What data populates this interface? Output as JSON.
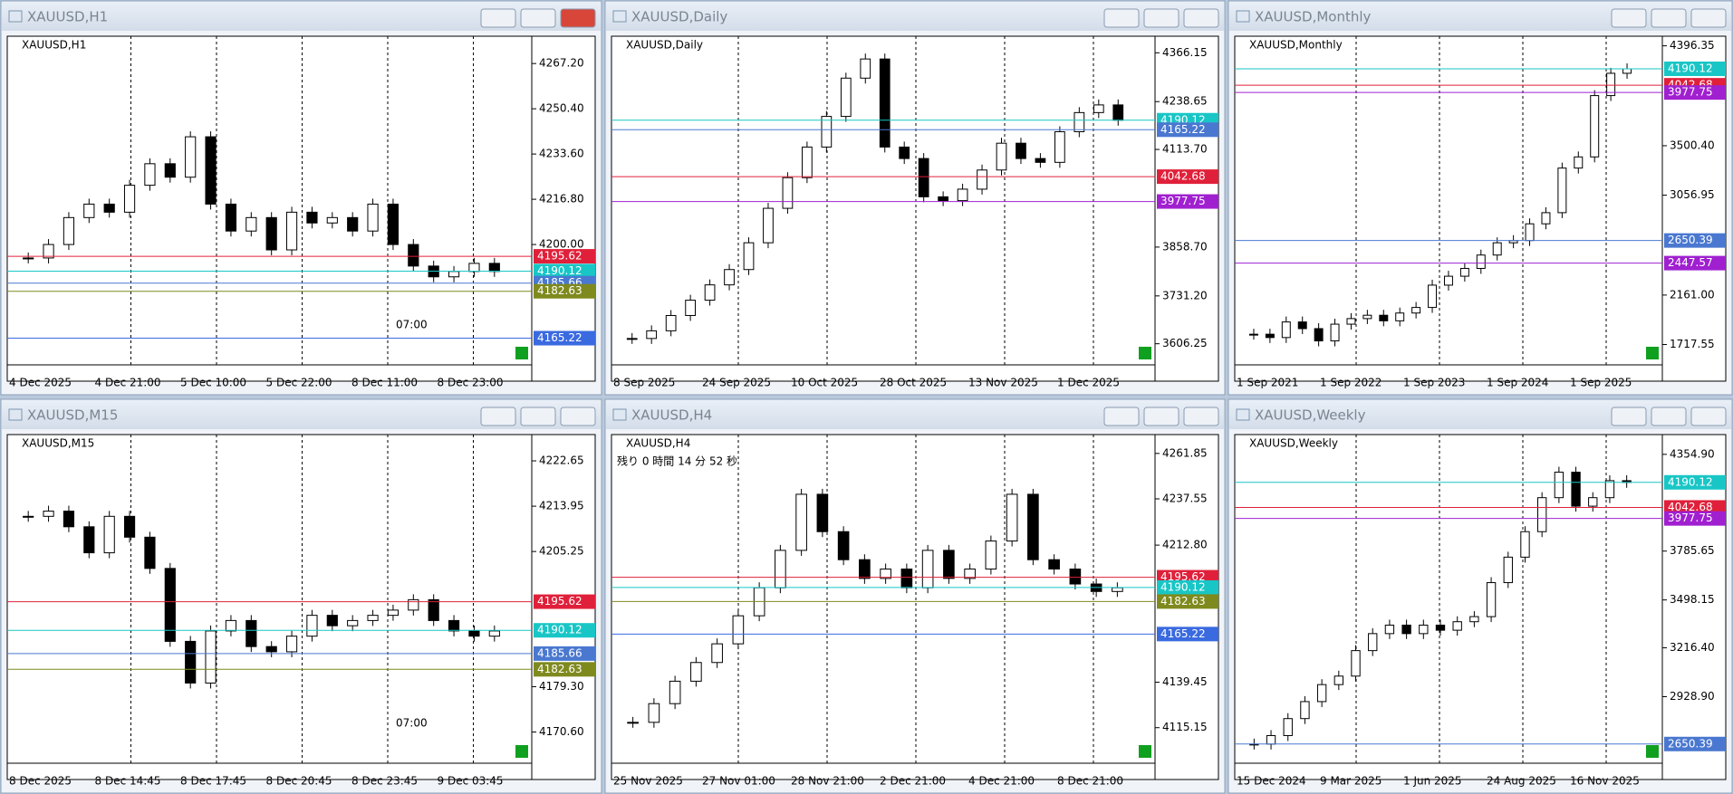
{
  "windows": [
    {
      "title": "XAUUSD,H1",
      "symbol_label": "XAUUSD,H1",
      "annotation": "07:00",
      "ylim": [
        4158,
        4276
      ],
      "yticks": [
        {
          "value": 4267.2,
          "label": "4267.20"
        },
        {
          "value": 4250.4,
          "label": "4250.40"
        },
        {
          "value": 4233.6,
          "label": "4233.60"
        },
        {
          "value": 4216.8,
          "label": "4216.80"
        },
        {
          "value": 4200,
          "label": "4200.00"
        }
      ],
      "levels": [
        {
          "price": 4195.62,
          "color": "#e0203a"
        },
        {
          "price": 4190.12,
          "color": "#19c6c6"
        },
        {
          "price": 4185.66,
          "color": "#4a78d0"
        },
        {
          "price": 4182.63,
          "color": "#7f8a1e"
        },
        {
          "price": 4165.22,
          "color": "#3a6ae0"
        }
      ],
      "xlabels": [
        "4 Dec 2025",
        "4 Dec 21:00",
        "5 Dec 10:00",
        "5 Dec 22:00",
        "8 Dec 11:00",
        "8 Dec 23:00"
      ],
      "closes": [
        4195,
        4200,
        4210,
        4215,
        4212,
        4222,
        4230,
        4225,
        4240,
        4215,
        4205,
        4210,
        4198,
        4212,
        4208,
        4210,
        4205,
        4215,
        4200,
        4192,
        4188,
        4190,
        4193,
        4190
      ]
    },
    {
      "title": "XAUUSD,Daily",
      "symbol_label": "XAUUSD,Daily",
      "ylim": [
        3570,
        4400
      ],
      "yticks": [
        4366.15,
        4238.65,
        {
          "value": 4113.7,
          "label": "4113.70"
        },
        {
          "value": 3858.7,
          "label": "3858.70"
        },
        {
          "value": 3731.2,
          "label": "3731.20"
        },
        3606.25
      ],
      "levels": [
        {
          "price": 4190.12,
          "color": "#19c6c6"
        },
        {
          "price": 4165.22,
          "color": "#4a78d0"
        },
        {
          "price": 4042.68,
          "color": "#e0203a"
        },
        {
          "price": 3977.75,
          "color": "#a020d0"
        }
      ],
      "xlabels": [
        "8 Sep 2025",
        "24 Sep 2025",
        "10 Oct 2025",
        "28 Oct 2025",
        "13 Nov 2025",
        "1 Dec 2025"
      ],
      "closes": [
        3620,
        3640,
        3680,
        3720,
        3760,
        3800,
        3870,
        3960,
        4040,
        4120,
        4200,
        4300,
        4350,
        4120,
        4090,
        3990,
        3980,
        4010,
        4060,
        4130,
        4090,
        4080,
        4160,
        4210,
        4230,
        4190
      ]
    },
    {
      "title": "XAUUSD,Monthly",
      "symbol_label": "XAUUSD,Monthly",
      "ylim": [
        1600,
        4450
      ],
      "yticks": [
        4396.35,
        {
          "value": 3500.4,
          "label": "3500.40"
        },
        3056.95,
        {
          "value": 2161,
          "label": "2161.00"
        },
        1717.55
      ],
      "levels": [
        {
          "price": 4190.12,
          "color": "#19c6c6"
        },
        {
          "price": 4042.68,
          "color": "#e0203a"
        },
        {
          "price": 3977.75,
          "color": "#a020d0"
        },
        {
          "price": 2650.39,
          "color": "#4a78d0"
        },
        {
          "price": 2447.57,
          "color": "#a020d0"
        }
      ],
      "xlabels": [
        "1 Sep 2021",
        "1 Sep 2022",
        "1 Sep 2023",
        "1 Sep 2024",
        "1 Sep 2025"
      ],
      "closes": [
        1810,
        1780,
        1920,
        1860,
        1750,
        1900,
        1950,
        1980,
        1930,
        2000,
        2050,
        2250,
        2330,
        2400,
        2520,
        2630,
        2650,
        2800,
        2900,
        3300,
        3400,
        3950,
        4150,
        4190
      ]
    },
    {
      "title": "XAUUSD,M15",
      "symbol_label": "XAUUSD,M15",
      "annotation": "07:00",
      "ylim": [
        4166,
        4227
      ],
      "yticks": [
        4222.65,
        4213.95,
        4205.25,
        {
          "value": 4179.3,
          "label": "4179.30"
        },
        {
          "value": 4170.6,
          "label": "4170.60"
        }
      ],
      "levels": [
        {
          "price": 4195.62,
          "color": "#e0203a"
        },
        {
          "price": 4190.12,
          "color": "#19c6c6"
        },
        {
          "price": 4185.66,
          "color": "#4a78d0"
        },
        {
          "price": 4182.63,
          "color": "#7f8a1e"
        }
      ],
      "xlabels": [
        "8 Dec 2025",
        "8 Dec 14:45",
        "8 Dec 17:45",
        "8 Dec 20:45",
        "8 Dec 23:45",
        "9 Dec 03:45"
      ],
      "closes": [
        4212,
        4213,
        4210,
        4205,
        4212,
        4208,
        4202,
        4188,
        4180,
        4190,
        4192,
        4187,
        4186,
        4189,
        4193,
        4191,
        4192,
        4193,
        4194,
        4196,
        4192,
        4190,
        4189,
        4190
      ]
    },
    {
      "title": "XAUUSD,H4",
      "symbol_label": "XAUUSD,H4",
      "countdown": "残り 0 時間 14 分 52 秒",
      "ylim": [
        4100,
        4270
      ],
      "yticks": [
        4261.85,
        4237.55,
        {
          "value": 4212.8,
          "label": "4212.80"
        },
        {
          "value": 4139.45,
          "label": "4139.45"
        },
        4115.15
      ],
      "levels": [
        {
          "price": 4195.62,
          "color": "#e0203a"
        },
        {
          "price": 4190.12,
          "color": "#19c6c6"
        },
        {
          "price": 4182.63,
          "color": "#7f8a1e"
        },
        {
          "price": 4165.22,
          "color": "#3a6ae0"
        }
      ],
      "xlabels": [
        "25 Nov 2025",
        "27 Nov 01:00",
        "28 Nov 21:00",
        "2 Dec 21:00",
        "4 Dec 21:00",
        "8 Dec 21:00"
      ],
      "closes": [
        4118,
        4128,
        4140,
        4150,
        4160,
        4175,
        4190,
        4210,
        4240,
        4220,
        4205,
        4195,
        4200,
        4190,
        4210,
        4195,
        4200,
        4215,
        4240,
        4205,
        4200,
        4192,
        4188,
        4190
      ]
    },
    {
      "title": "XAUUSD,Weekly",
      "symbol_label": "XAUUSD,Weekly",
      "ylim": [
        2580,
        4450
      ],
      "yticks": [
        {
          "value": 4354.9,
          "label": "4354.90"
        },
        3785.65,
        3498.15,
        {
          "value": 3216.4,
          "label": "3216.40"
        },
        {
          "value": 2928.9,
          "label": "2928.90"
        }
      ],
      "levels": [
        {
          "price": 4190.12,
          "color": "#19c6c6"
        },
        {
          "price": 4042.68,
          "color": "#e0203a"
        },
        {
          "price": 3977.75,
          "color": "#a020d0"
        },
        {
          "price": 2650.39,
          "color": "#4a78d0"
        }
      ],
      "xlabels": [
        "15 Dec 2024",
        "9 Mar 2025",
        "1 Jun 2025",
        "24 Aug 2025",
        "16 Nov 2025"
      ],
      "closes": [
        2650,
        2700,
        2800,
        2900,
        3000,
        3050,
        3200,
        3300,
        3350,
        3300,
        3350,
        3320,
        3370,
        3400,
        3600,
        3750,
        3900,
        4100,
        4250,
        4050,
        4100,
        4200,
        4190
      ]
    }
  ]
}
